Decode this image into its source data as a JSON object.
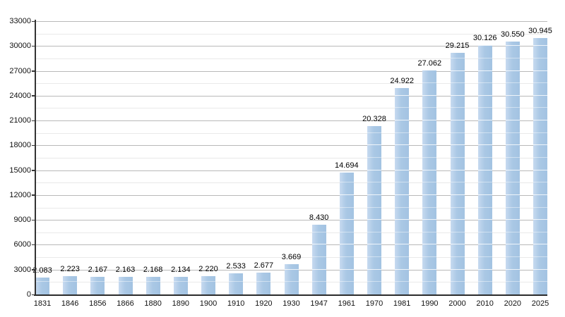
{
  "chart_data": {
    "type": "bar",
    "title": "",
    "xlabel": "",
    "ylabel": "",
    "categories": [
      "1831",
      "1846",
      "1856",
      "1866",
      "1880",
      "1890",
      "1900",
      "1910",
      "1920",
      "1930",
      "1947",
      "1961",
      "1970",
      "1981",
      "1990",
      "2000",
      "2010",
      "2020",
      "2025"
    ],
    "values": [
      2083,
      2223,
      2167,
      2163,
      2168,
      2134,
      2220,
      2533,
      2677,
      3669,
      8430,
      14694,
      20328,
      24922,
      27062,
      29215,
      30126,
      30550,
      30945
    ],
    "value_labels": [
      "2.083",
      "2.223",
      "2.167",
      "2.163",
      "2.168",
      "2.134",
      "2.220",
      "2.533",
      "2.677",
      "3.669",
      "8.430",
      "14.694",
      "20.328",
      "24.922",
      "27.062",
      "29.215",
      "30.126",
      "30.550",
      "30.945"
    ],
    "ylim": [
      0,
      33000
    ],
    "y_major_step": 3000,
    "y_minor_step": 1500,
    "y_tick_labels": [
      "0",
      "3000",
      "6000",
      "9000",
      "12000",
      "15000",
      "18000",
      "21000",
      "24000",
      "27000",
      "30000",
      "33000"
    ],
    "grid": true,
    "legend": "none",
    "colors": {
      "bar_fill_light": "#c7daf0",
      "bar_fill_mid": "#aac8e5",
      "bar_fill_dark": "#a3c3e2",
      "grid_major": "#b9b9b9",
      "grid_minor": "#e9e9e9",
      "axis": "#2b2b2b",
      "text": "#111111",
      "background": "#ffffff"
    }
  }
}
